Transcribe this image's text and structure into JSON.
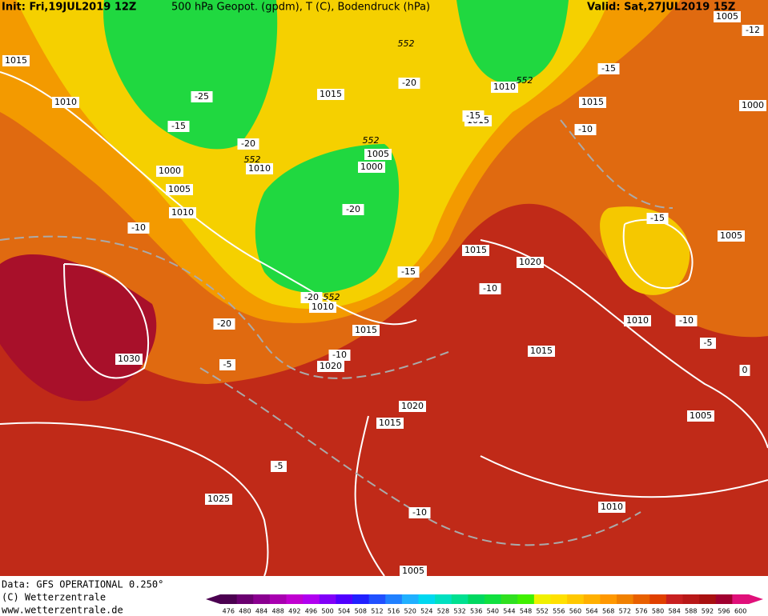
{
  "header": {
    "init": "Init: Fri,19JUL2019 12Z",
    "title": "500 hPa Geopot. (gpdm), T (C), Bodendruck (hPa)",
    "valid": "Valid: Sat,27JUL2019 15Z"
  },
  "footer": {
    "data": "Data: GFS OPERATIONAL 0.250°",
    "copyright": "(C) Wetterzentrale",
    "url": "www.wetterzentrale.de"
  },
  "legend": {
    "levels": [
      476,
      480,
      484,
      488,
      492,
      496,
      500,
      504,
      508,
      512,
      516,
      520,
      524,
      528,
      532,
      536,
      540,
      544,
      548,
      552,
      556,
      560,
      564,
      568,
      572,
      576,
      580,
      584,
      588,
      592,
      596,
      600
    ],
    "colors": [
      "#4b0050",
      "#6a0070",
      "#8a0090",
      "#a800b0",
      "#c000d0",
      "#b000f0",
      "#8000f8",
      "#5000ff",
      "#2020ff",
      "#2050ff",
      "#2080ff",
      "#20b0ff",
      "#00d8f0",
      "#00e0c0",
      "#00e090",
      "#00d860",
      "#10e040",
      "#30e020",
      "#40f000",
      "#f0f000",
      "#ffe000",
      "#ffc800",
      "#ffb000",
      "#ff9800",
      "#f08000",
      "#e86000",
      "#e04000",
      "#c82020",
      "#b81818",
      "#a81010",
      "#a00030",
      "#e0107a"
    ]
  },
  "map_labels": {
    "pressure": [
      "1015",
      "1010",
      "1000",
      "1005",
      "1010",
      "1010",
      "1015",
      "1005",
      "1000",
      "1010",
      "1015",
      "1015",
      "1000",
      "1005",
      "1005",
      "1015",
      "1020",
      "1010",
      "1015",
      "1020",
      "1030",
      "1015",
      "1010",
      "1005",
      "1020",
      "1015",
      "1025",
      "1010",
      "1005"
    ],
    "temperature": [
      "-10",
      "-15",
      "-25",
      "-20",
      "-20",
      "-20",
      "-15",
      "-10",
      "-15",
      "-15",
      "-15",
      "-10",
      "-20",
      "-20",
      "-5",
      "-10",
      "-10",
      "-5",
      "-5",
      "-10",
      "-12",
      "0"
    ],
    "geopotential": [
      "552",
      "552",
      "552",
      "552",
      "552"
    ]
  }
}
